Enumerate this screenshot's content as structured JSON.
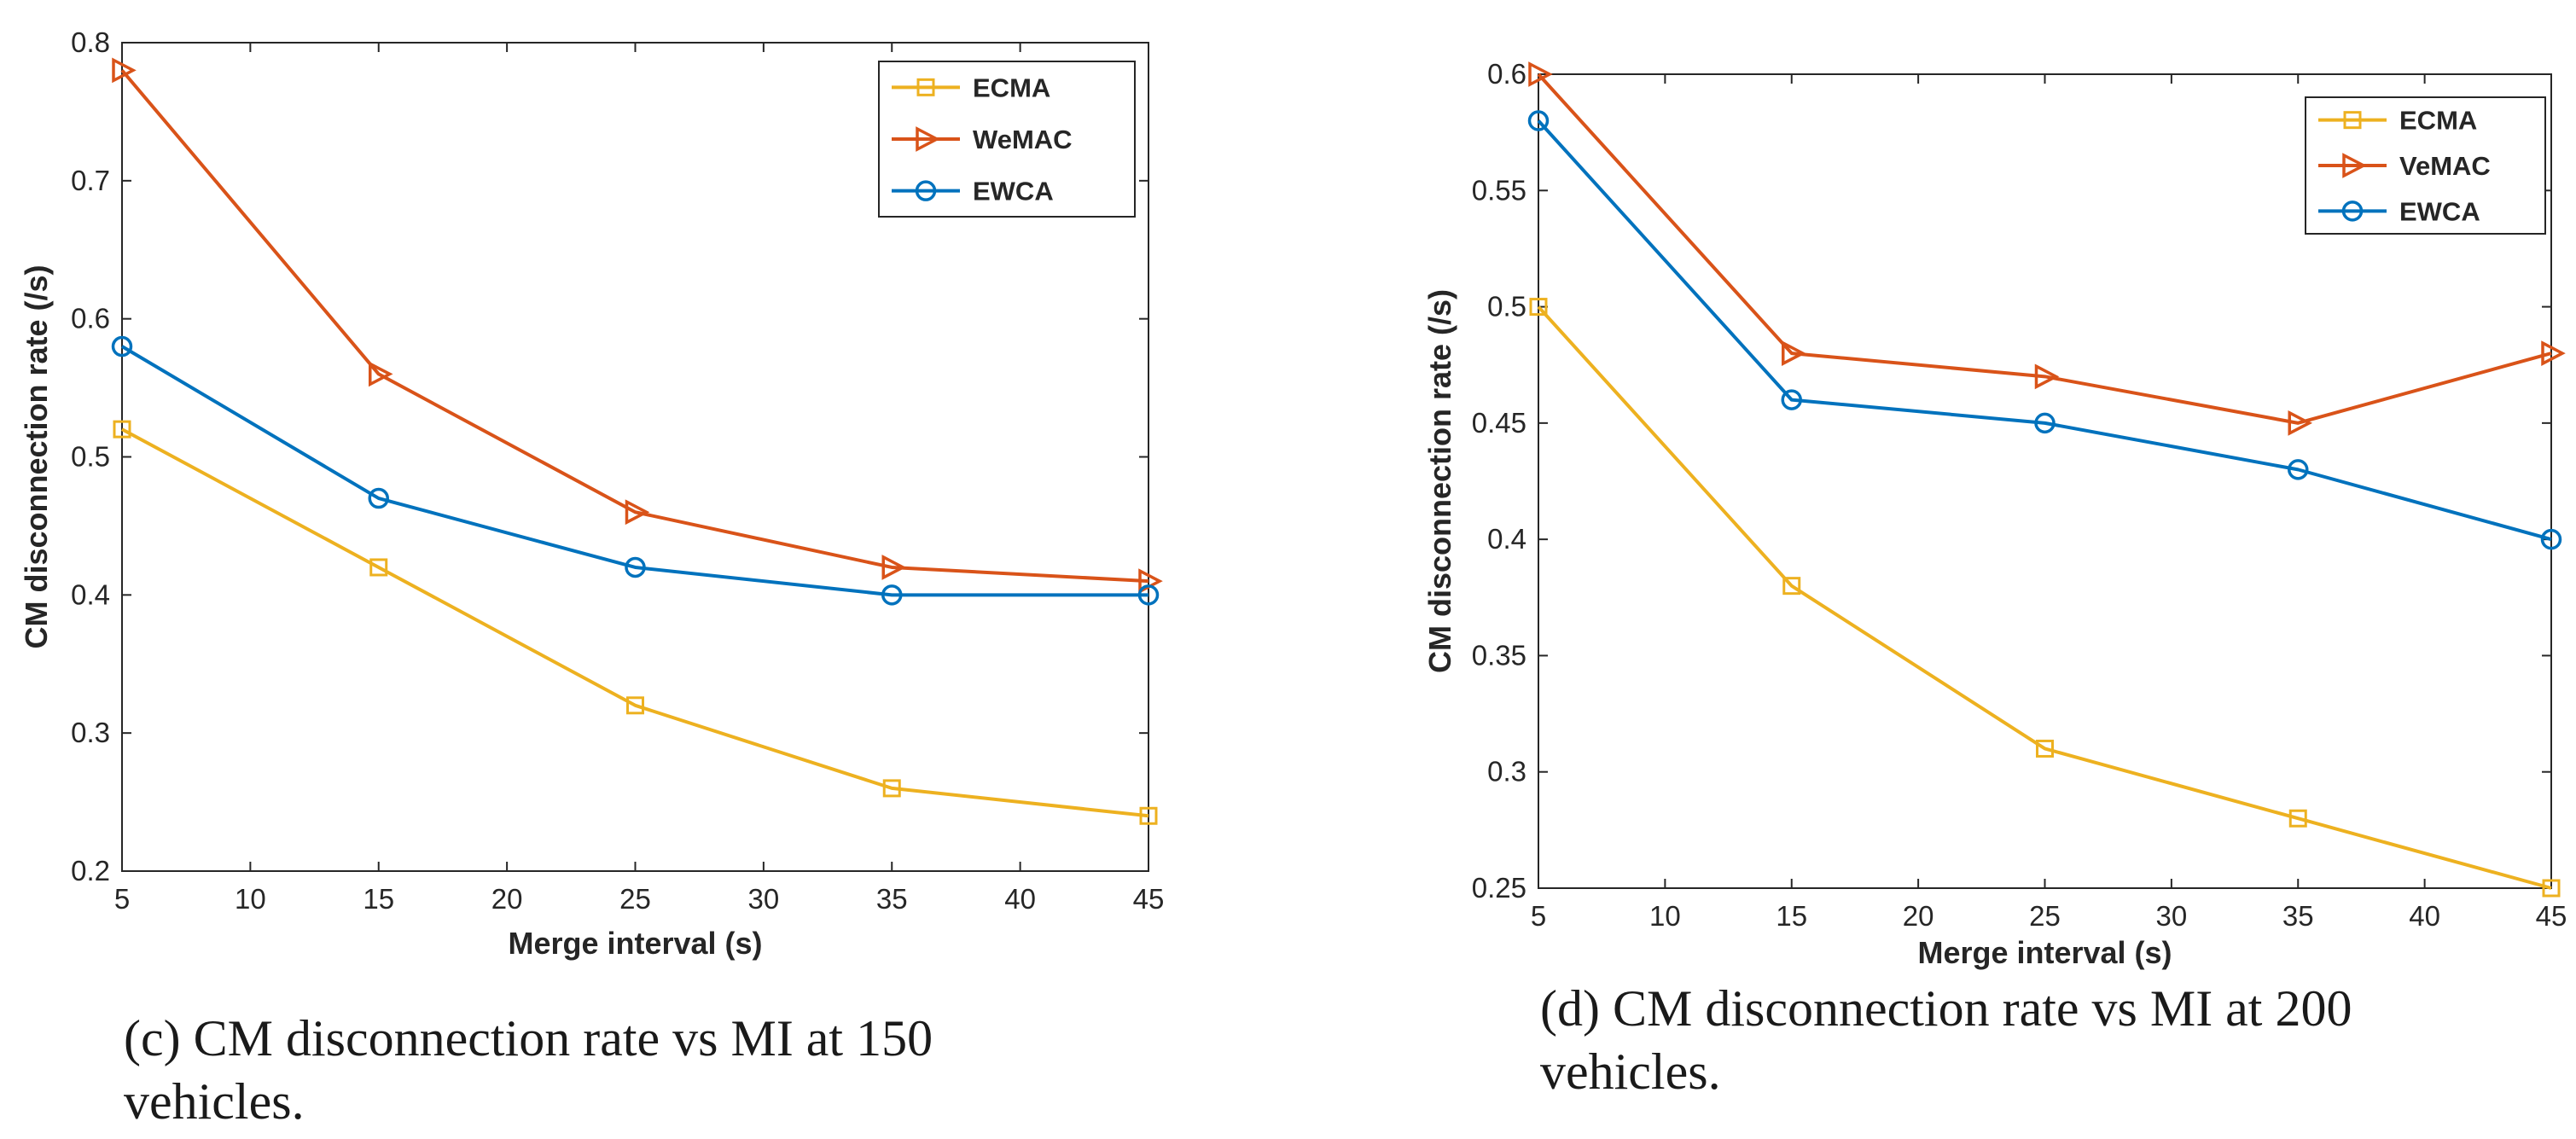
{
  "chart_data": [
    {
      "type": "line",
      "caption": [
        "(c) CM disconnection rate vs MI at 150",
        "vehicles."
      ],
      "xlabel": "Merge interval (s)",
      "ylabel": "CM disconnection rate (/s)",
      "xlim": [
        5,
        45
      ],
      "ylim": [
        0.2,
        0.8
      ],
      "xticks": [
        5,
        10,
        15,
        20,
        25,
        30,
        35,
        40,
        45
      ],
      "yticks": [
        "0.2",
        "0.3",
        "0.4",
        "0.5",
        "0.6",
        "0.7",
        "0.8"
      ],
      "legend_position": "top-right",
      "x": [
        5,
        15,
        25,
        35,
        45
      ],
      "series": [
        {
          "name": "ECMA",
          "color": "#EDB120",
          "marker": "square",
          "values": [
            0.52,
            0.42,
            0.32,
            0.26,
            0.24
          ]
        },
        {
          "name": "WeMAC",
          "color": "#D95319",
          "marker": "triangle-right",
          "values": [
            0.78,
            0.56,
            0.46,
            0.42,
            0.41
          ]
        },
        {
          "name": "EWCA",
          "color": "#0072BD",
          "marker": "circle",
          "values": [
            0.58,
            0.47,
            0.42,
            0.4,
            0.4
          ]
        }
      ]
    },
    {
      "type": "line",
      "caption": [
        "(d) CM disconnection rate vs MI at 200",
        "vehicles."
      ],
      "xlabel": "Merge interval (s)",
      "ylabel": "CM disconnection rate (/s)",
      "xlim": [
        5,
        45
      ],
      "ylim": [
        0.25,
        0.6
      ],
      "xticks": [
        5,
        10,
        15,
        20,
        25,
        30,
        35,
        40,
        45
      ],
      "yticks": [
        "0.25",
        "0.3",
        "0.35",
        "0.4",
        "0.45",
        "0.5",
        "0.55",
        "0.6"
      ],
      "legend_position": "top-right",
      "x": [
        5,
        15,
        25,
        35,
        45
      ],
      "series": [
        {
          "name": "ECMA",
          "color": "#EDB120",
          "marker": "square",
          "values": [
            0.5,
            0.38,
            0.31,
            0.28,
            0.25
          ]
        },
        {
          "name": "VeMAC",
          "color": "#D95319",
          "marker": "triangle-right",
          "values": [
            0.6,
            0.48,
            0.47,
            0.45,
            0.48
          ]
        },
        {
          "name": "EWCA",
          "color": "#0072BD",
          "marker": "circle",
          "values": [
            0.58,
            0.46,
            0.45,
            0.43,
            0.4
          ]
        }
      ]
    }
  ]
}
